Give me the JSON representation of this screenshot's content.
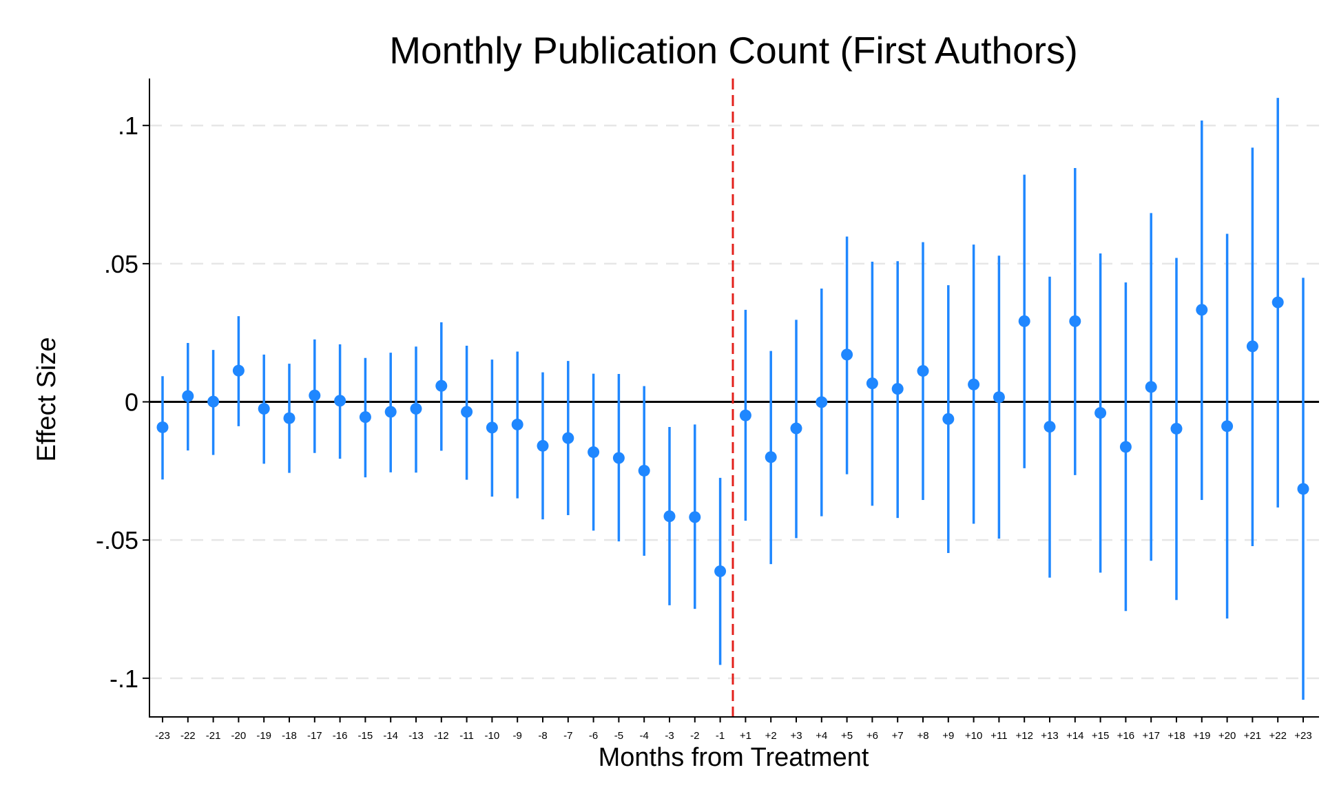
{
  "chart_data": {
    "type": "scatter",
    "title": "Monthly Publication Count (First Authors)",
    "xlabel": "Months from Treatment",
    "ylabel": "Effect Size",
    "ylim": [
      -0.114,
      0.117
    ],
    "yticks": [
      0.1,
      0.05,
      0,
      -0.05,
      -0.1
    ],
    "ytick_labels": [
      ".1",
      ".05",
      "0",
      "-.05",
      "-.1"
    ],
    "grid": "horizontal dashed",
    "reference_line_y": 0,
    "treatment_line_between": [
      "-1",
      "+1"
    ],
    "categories": [
      "-23",
      "-22",
      "-21",
      "-20",
      "-19",
      "-18",
      "-17",
      "-16",
      "-15",
      "-14",
      "-13",
      "-12",
      "-11",
      "-10",
      "-9",
      "-8",
      "-7",
      "-6",
      "-5",
      "-4",
      "-3",
      "-2",
      "-1",
      "+1",
      "+2",
      "+3",
      "+4",
      "+5",
      "+6",
      "+7",
      "+8",
      "+9",
      "+10",
      "+11",
      "+12",
      "+13",
      "+14",
      "+15",
      "+16",
      "+17",
      "+18",
      "+19",
      "+20",
      "+21",
      "+22",
      "+23"
    ],
    "estimate": [
      -0.0092,
      0.0021,
      0.0001,
      0.0113,
      -0.0025,
      -0.0059,
      0.0023,
      0.0004,
      -0.0055,
      -0.0036,
      -0.0025,
      0.0058,
      -0.0036,
      -0.0093,
      -0.0082,
      -0.0159,
      -0.0131,
      -0.0182,
      -0.0203,
      -0.0249,
      -0.0414,
      -0.0417,
      -0.0613,
      -0.0049,
      -0.02,
      -0.0096,
      -0.0001,
      0.0171,
      0.0067,
      0.0047,
      0.0112,
      -0.0062,
      0.0063,
      0.0017,
      0.0292,
      -0.009,
      0.0292,
      -0.004,
      -0.0163,
      0.0054,
      -0.0097,
      0.0333,
      -0.0088,
      0.0201,
      0.036,
      -0.0315
    ],
    "ci_upper": [
      0.0093,
      0.0213,
      0.0188,
      0.031,
      0.0171,
      0.0138,
      0.0226,
      0.0208,
      0.0159,
      0.0178,
      0.02,
      0.0288,
      0.0203,
      0.0153,
      0.0182,
      0.0107,
      0.0148,
      0.0102,
      0.0101,
      0.0057,
      -0.0091,
      -0.0082,
      -0.0275,
      0.0333,
      0.0184,
      0.0297,
      0.041,
      0.0598,
      0.0507,
      0.0509,
      0.0578,
      0.0422,
      0.0569,
      0.0529,
      0.0822,
      0.0453,
      0.0846,
      0.0537,
      0.0432,
      0.0683,
      0.0521,
      0.1018,
      0.0608,
      0.092,
      0.11,
      0.0449
    ],
    "ci_lower": [
      -0.0281,
      -0.0176,
      -0.0192,
      -0.0088,
      -0.0224,
      -0.0257,
      -0.0185,
      -0.0206,
      -0.0273,
      -0.0255,
      -0.0256,
      -0.0177,
      -0.0282,
      -0.0343,
      -0.0349,
      -0.0425,
      -0.041,
      -0.0466,
      -0.0505,
      -0.0557,
      -0.0736,
      -0.0749,
      -0.0952,
      -0.043,
      -0.0587,
      -0.0493,
      -0.0414,
      -0.0262,
      -0.0376,
      -0.042,
      -0.0355,
      -0.0547,
      -0.0441,
      -0.0495,
      -0.024,
      -0.0636,
      -0.0265,
      -0.0618,
      -0.0757,
      -0.0575,
      -0.0717,
      -0.0355,
      -0.0784,
      -0.0522,
      -0.0382,
      -0.1078
    ],
    "colors": {
      "marker": "#1f87ff",
      "treatment_line": "#e3201b",
      "axis": "#000000",
      "grid": "#e6e6e6"
    }
  }
}
